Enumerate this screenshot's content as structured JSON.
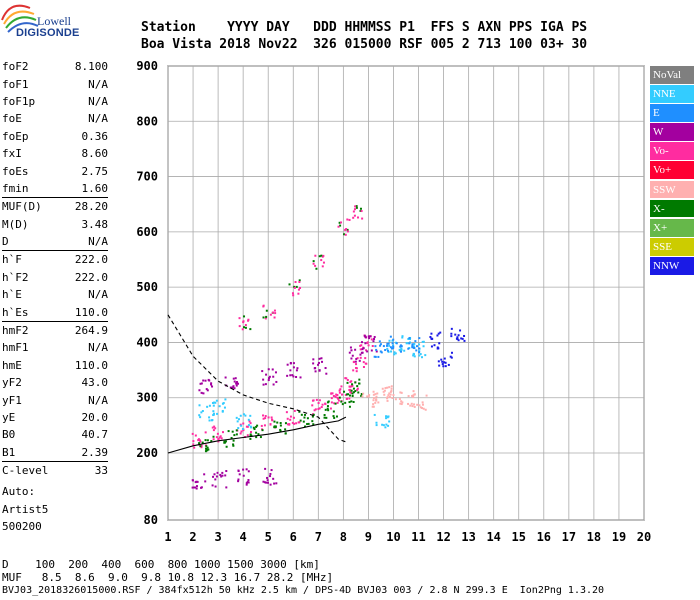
{
  "logo": {
    "line1": "Lowell",
    "line2": "DIGISONDE"
  },
  "header": {
    "labels": "Station    YYYY DAY   DDD HHMMSS P1  FFS S AXN PPS IGA PS",
    "values": "Boa Vista 2018 Nov22  326 015000 RSF 005 2 713 100 03+ 30"
  },
  "params": [
    {
      "label": "foF2",
      "value": "8.100"
    },
    {
      "label": "foF1",
      "value": "N/A"
    },
    {
      "label": "foF1p",
      "value": "N/A"
    },
    {
      "label": "foE",
      "value": "N/A"
    },
    {
      "label": "foEp",
      "value": "0.36"
    },
    {
      "label": "fxI",
      "value": "8.60"
    },
    {
      "label": "foEs",
      "value": "2.75"
    },
    {
      "label": "fmin",
      "value": "1.60"
    },
    {
      "label": "MUF(D)",
      "value": "28.20",
      "sep": true
    },
    {
      "label": "M(D)",
      "value": "3.48"
    },
    {
      "label": "D",
      "value": "N/A"
    },
    {
      "label": "h`F",
      "value": "222.0",
      "sep": true
    },
    {
      "label": "h`F2",
      "value": "222.0"
    },
    {
      "label": "h`E",
      "value": "N/A"
    },
    {
      "label": "h`Es",
      "value": "110.0"
    },
    {
      "label": "hmF2",
      "value": "264.9",
      "sep": true
    },
    {
      "label": "hmF1",
      "value": "N/A"
    },
    {
      "label": "hmE",
      "value": "110.0"
    },
    {
      "label": "yF2",
      "value": "43.0"
    },
    {
      "label": "yF1",
      "value": "N/A"
    },
    {
      "label": "yE",
      "value": "20.0"
    },
    {
      "label": "B0",
      "value": "40.7"
    },
    {
      "label": "B1",
      "value": "2.39"
    },
    {
      "label": "C-level",
      "value": "33",
      "sep": true
    }
  ],
  "auto": {
    "line1": "Auto:",
    "line2": "Artist5",
    "line3": "500200"
  },
  "legend": [
    {
      "label": "NoVal",
      "color": "#7f7f7f"
    },
    {
      "label": "NNE",
      "color": "#33ccff"
    },
    {
      "label": "E",
      "color": "#1f8fff"
    },
    {
      "label": "W",
      "color": "#a3009f"
    },
    {
      "label": "Vo-",
      "color": "#ff2ca0"
    },
    {
      "label": "Vo+",
      "color": "#ff0033"
    },
    {
      "label": "SSW",
      "color": "#ffb0b0"
    },
    {
      "label": "X-",
      "color": "#007a00"
    },
    {
      "label": "X+",
      "color": "#66b84a"
    },
    {
      "label": "SSE",
      "color": "#cccc00"
    },
    {
      "label": "NNW",
      "color": "#1a1ae6"
    }
  ],
  "footer": {
    "line1": "D    100  200  400  600  800 1000 1500 3000 [km]",
    "line2": "MUF   8.5  8.6  9.0  9.8 10.8 12.3 16.7 28.2 [MHz]",
    "line3": "BVJ03_2018326015000.RSF / 384fx512h 50 kHz 2.5 km / DPS-4D BVJ03 003 / 2.8 N 299.3 E  Ion2Png 1.3.20"
  },
  "chart_data": {
    "type": "scatter",
    "xlim": [
      1,
      20
    ],
    "ylim": [
      80,
      900
    ],
    "x_ticks": [
      "1",
      "2",
      "3",
      "4",
      "5",
      "6",
      "7",
      "8",
      "9",
      "10",
      "11",
      "12",
      "13",
      "14",
      "15",
      "16",
      "17",
      "18",
      "19",
      "20"
    ],
    "y_ticks": [
      "80",
      "200",
      "300",
      "400",
      "500",
      "600",
      "700",
      "800",
      "900"
    ],
    "grid": true,
    "series": [
      {
        "name": "Vo-",
        "color": "#ff2ca0",
        "points": [
          [
            2.2,
            225
          ],
          [
            3,
            235
          ],
          [
            4,
            245
          ],
          [
            5,
            255
          ],
          [
            6,
            268
          ],
          [
            7,
            285
          ],
          [
            7.5,
            295
          ],
          [
            8,
            310
          ],
          [
            8.3,
            330
          ],
          [
            8.6,
            360
          ],
          [
            8.9,
            400
          ]
        ]
      },
      {
        "name": "X-",
        "color": "#007a00",
        "points": [
          [
            2.5,
            220
          ],
          [
            3.5,
            228
          ],
          [
            4.5,
            238
          ],
          [
            5.5,
            250
          ],
          [
            6.5,
            262
          ],
          [
            7.5,
            280
          ],
          [
            8.1,
            300
          ],
          [
            8.4,
            320
          ]
        ]
      },
      {
        "name": "W",
        "color": "#a3009f",
        "points": [
          [
            2.2,
            150
          ],
          [
            3,
            155
          ],
          [
            4,
            160
          ],
          [
            5,
            160
          ],
          [
            2.5,
            320
          ],
          [
            3.5,
            330
          ],
          [
            5,
            340
          ],
          [
            6,
            350
          ],
          [
            7,
            360
          ],
          [
            8.5,
            380
          ],
          [
            9,
            400
          ]
        ]
      },
      {
        "name": "NNE",
        "color": "#33ccff",
        "points": [
          [
            2.5,
            275
          ],
          [
            3,
            285
          ],
          [
            4,
            260
          ],
          [
            9.5,
            260
          ],
          [
            10,
            395
          ],
          [
            10.5,
            400
          ],
          [
            11,
            390
          ]
        ]
      },
      {
        "name": "SSW",
        "color": "#ffb0b0",
        "points": [
          [
            9,
            300
          ],
          [
            9.5,
            305
          ],
          [
            10,
            310
          ],
          [
            10.5,
            300
          ],
          [
            11,
            295
          ]
        ]
      },
      {
        "name": "E",
        "color": "#1f8fff",
        "points": [
          [
            9.5,
            390
          ],
          [
            10,
            400
          ],
          [
            10.8,
            395
          ]
        ]
      },
      {
        "name": "NNW",
        "color": "#1a1ae6",
        "points": [
          [
            12,
            370
          ],
          [
            12.5,
            415
          ],
          [
            11.7,
            405
          ]
        ]
      }
    ],
    "second_hop": [
      [
        4,
        440
      ],
      [
        5,
        460
      ],
      [
        6,
        500
      ],
      [
        7,
        550
      ],
      [
        8,
        610
      ],
      [
        8.5,
        640
      ]
    ],
    "profile_curve": [
      [
        1,
        450
      ],
      [
        2,
        375
      ],
      [
        3,
        330
      ],
      [
        4,
        305
      ],
      [
        5,
        290
      ],
      [
        6,
        280
      ],
      [
        7,
        265
      ],
      [
        7.5,
        240
      ],
      [
        7.8,
        225
      ],
      [
        8.1,
        220
      ]
    ],
    "trace_curve": [
      [
        1,
        200
      ],
      [
        2,
        213
      ],
      [
        3,
        222
      ],
      [
        4,
        228
      ],
      [
        5,
        234
      ],
      [
        6,
        242
      ],
      [
        7,
        252
      ],
      [
        7.8,
        258
      ],
      [
        8.1,
        265
      ]
    ]
  }
}
